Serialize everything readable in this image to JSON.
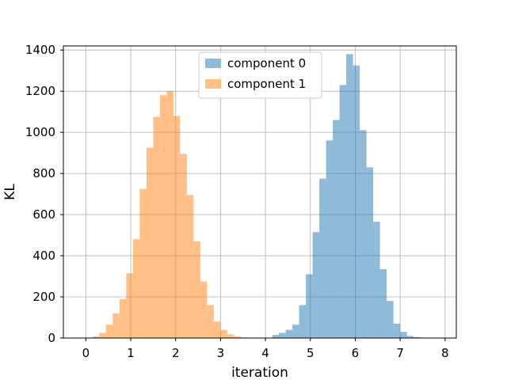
{
  "chart_data": {
    "type": "bar",
    "xlabel": "iteration",
    "ylabel": "KL",
    "xlim": [
      -0.5,
      8.25
    ],
    "ylim": [
      0,
      1420
    ],
    "xticks": [
      0,
      1,
      2,
      3,
      4,
      5,
      6,
      7,
      8
    ],
    "yticks": [
      0,
      200,
      400,
      600,
      800,
      1000,
      1200,
      1400
    ],
    "grid": true,
    "legend_position": "top-center",
    "bin_width": 0.15,
    "series": [
      {
        "name": "component 0",
        "color": "#1f77b4",
        "opacity": 0.5,
        "bin_starts": [
          4.15,
          4.3,
          4.45,
          4.6,
          4.75,
          4.9,
          5.05,
          5.2,
          5.35,
          5.5,
          5.65,
          5.8,
          5.95,
          6.1,
          6.25,
          6.4,
          6.55,
          6.7,
          6.85,
          7.0,
          7.15,
          7.3,
          7.45
        ],
        "values": [
          15,
          25,
          40,
          65,
          160,
          310,
          515,
          775,
          960,
          1060,
          1230,
          1380,
          1325,
          1010,
          830,
          565,
          335,
          180,
          70,
          30,
          10,
          5,
          2
        ]
      },
      {
        "name": "component 1",
        "color": "#ff7f0e",
        "opacity": 0.5,
        "bin_starts": [
          0.0,
          0.15,
          0.3,
          0.45,
          0.6,
          0.75,
          0.9,
          1.05,
          1.2,
          1.35,
          1.5,
          1.65,
          1.8,
          1.95,
          2.1,
          2.25,
          2.4,
          2.55,
          2.7,
          2.85,
          3.0,
          3.15,
          3.3,
          3.45,
          3.6,
          3.75,
          3.9
        ],
        "values": [
          2,
          8,
          25,
          65,
          120,
          190,
          315,
          480,
          725,
          925,
          1075,
          1180,
          1200,
          1080,
          895,
          695,
          470,
          275,
          160,
          80,
          40,
          18,
          8,
          3,
          1,
          0,
          0
        ]
      }
    ]
  }
}
